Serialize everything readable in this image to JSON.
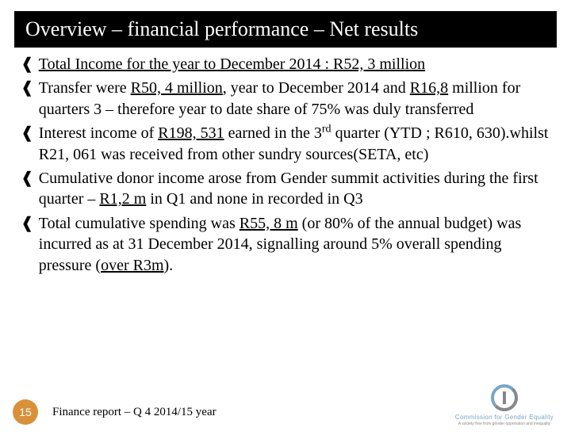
{
  "title": "Overview – financial performance – Net results",
  "bullets": [
    {
      "html": "<span class='u'>Total  Income for the year to December 2014 : R52, 3 million</span>"
    },
    {
      "html": "Transfer were <span class='u'>R50, 4 million</span>, year to December 2014 and <span class='u'>R16,8</span> million for quarters 3 – therefore year to date share of 75% was duly transferred"
    },
    {
      "html": "Interest income of <span class='u'>R198, 531</span> earned in the 3<span class='sup'>rd</span> quarter (YTD ; R610, 630).whilst R21, 061 was received from other sundry sources(SETA, etc)"
    },
    {
      "html": "Cumulative donor income arose from Gender summit activities during the first quarter – <span class='u'>R1,2 m</span> in Q1 and none in  recorded in Q3"
    },
    {
      "html": "Total cumulative spending was <span class='u'>R55, 8 m</span> (or 80% of the annual budget) was incurred as at 31 December 2014, signalling around 5% overall spending pressure (<span class='u'>over R3m</span>)."
    }
  ],
  "footer": {
    "page_number": "15",
    "text": "Finance report – Q 4 2014/15 year"
  },
  "logo": {
    "line1": "Commission for Gender Equality",
    "line2": "A society free from gender oppression and inequality"
  },
  "colors": {
    "title_bg": "#000000",
    "title_fg": "#ffffff",
    "page_bg": "#ffffff",
    "page_num_bg": "#d9903b",
    "logo_accent": "#7aa6c2",
    "logo_gray": "#888888"
  }
}
